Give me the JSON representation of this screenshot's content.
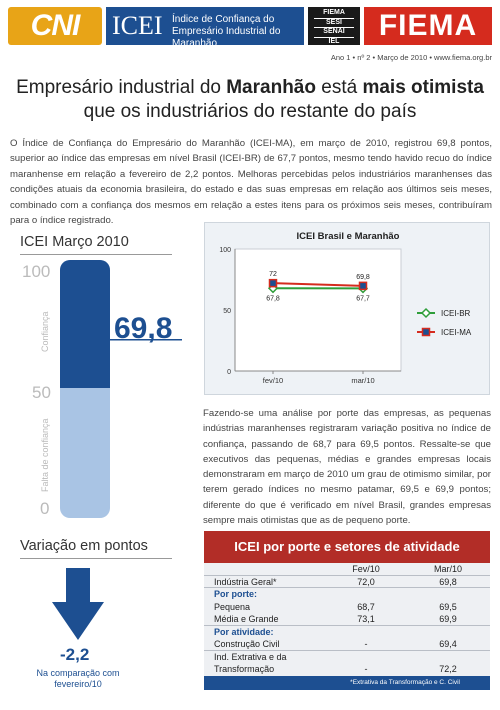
{
  "header": {
    "cni": "CNI",
    "icei": "ICEI",
    "icei_sub": "Índice de Confiança do Empresário Industrial do Maranhão",
    "fs_lines": [
      "FIEMA",
      "SESI",
      "SENAI",
      "IEL"
    ],
    "fiema": "FIEMA",
    "issue": "Ano 1 • nº 2 • Março de 2010 • www.fiema.org.br"
  },
  "headline": {
    "pre": "Empresário industrial do ",
    "b1": "Maranhão",
    "mid": " está ",
    "b2": "mais otimista",
    "line2": "que os industriários do restante do país"
  },
  "intro": "O Índice de Confiança do Empresário do Maranhão (ICEI-MA), em março de 2010, registrou 69,8 pontos, superior ao índice das empresas em nível Brasil (ICEI-BR) de 67,7 pontos, mesmo tendo havido recuo do índice maranhense em relação a fevereiro de 2,2 pontos. Melhoras percebidas pelos industriários maranhenses das condições atuais da economia brasileira, do estado e das suas empresas em relação aos últimos seis meses, combinado com a confiança dos mesmos em relação a estes itens para os próximos seis meses, contribuíram para o índice registrado.",
  "gauge": {
    "title": "ICEI Março 2010",
    "value_label": "69,8",
    "value": 69.8,
    "tick_100": "100",
    "tick_50": "50",
    "tick_0": "0",
    "label_top": "Confiança",
    "label_bottom": "Falta de confiança",
    "colors": {
      "dark": "#1d4f91",
      "light": "#a9c4e4"
    }
  },
  "variation": {
    "title": "Variação em pontos",
    "value": "-2,2",
    "caption": "Na comparação com fevereiro/10"
  },
  "chart_data": {
    "type": "line",
    "title": "ICEI Brasil e Maranhão",
    "categories": [
      "fev/10",
      "mar/10"
    ],
    "ylim": [
      0,
      100
    ],
    "yticks": [
      "0",
      "50",
      "100"
    ],
    "series": [
      {
        "name": "ICEI-BR",
        "values": [
          67.8,
          67.7
        ],
        "labels": [
          "67,8",
          "67,7"
        ],
        "color": "#2e9e3a"
      },
      {
        "name": "ICEI-MA",
        "values": [
          72,
          69.8
        ],
        "labels": [
          "72",
          "69,8"
        ],
        "color": "#d52b1e"
      }
    ],
    "legend": "right"
  },
  "analysis": "Fazendo-se uma análise por porte das empresas, as pequenas indústrias maranhenses registraram variação positiva no índice de confiança, passando de 68,7 para 69,5 pontos. Ressalte-se que executivos das pequenas, médias e grandes empresas locais demonstraram em março de 2010 um grau de otimismo similar, por terem gerado índices no mesmo patamar, 69,5 e 69,9 pontos; diferente do que é verificado em nível Brasil, grandes empresas sempre mais otimistas que as de pequeno porte.",
  "table": {
    "title": "ICEI por porte e setores de atividade",
    "cols": [
      "",
      "Fev/10",
      "Mar/10"
    ],
    "rows": [
      {
        "label": "Indústria Geral*",
        "fev": "72,0",
        "mar": "69,8",
        "group": false
      },
      {
        "label": "Por porte:",
        "fev": "",
        "mar": "",
        "group": true
      },
      {
        "label": "Pequena",
        "fev": "68,7",
        "mar": "69,5",
        "group": false
      },
      {
        "label": "Média e Grande",
        "fev": "73,1",
        "mar": "69,9",
        "group": false
      },
      {
        "label": "Por atividade:",
        "fev": "",
        "mar": "",
        "group": true
      },
      {
        "label": "Construção Civil",
        "fev": "-",
        "mar": "69,4",
        "group": false
      },
      {
        "label": "Ind. Extrativa e da",
        "fev": "",
        "mar": "",
        "group": false
      },
      {
        "label": "Transformação",
        "fev": "-",
        "mar": "72,2",
        "group": false
      }
    ],
    "footnote": "*Extrativa da Transformação e C. Civil"
  }
}
